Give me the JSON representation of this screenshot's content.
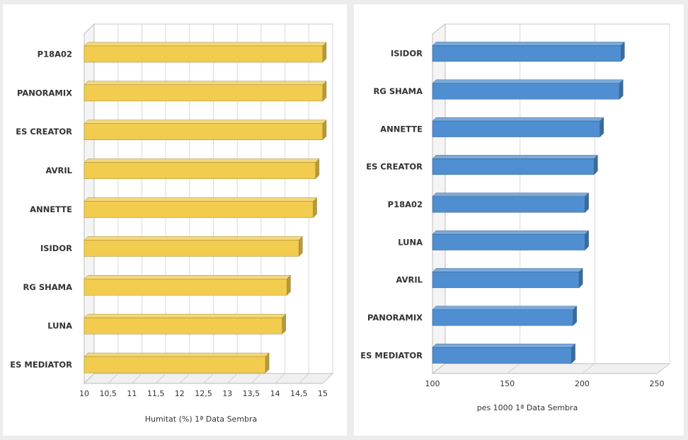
{
  "chart_data": [
    {
      "type": "bar",
      "orientation": "horizontal",
      "style": "3d",
      "categories": [
        "P18A02",
        "PANORAMIX",
        "ES CREATOR",
        "AVRIL",
        "ANNETTE",
        "ISIDOR",
        "RG SHAMA",
        "LUNA",
        "ES MEDIATOR"
      ],
      "values": [
        15.0,
        15.0,
        15.0,
        14.85,
        14.8,
        14.5,
        14.25,
        14.15,
        13.8
      ],
      "xlabel": "Humitat (%) 1ª Data Sembra",
      "xlim": [
        10,
        15
      ],
      "xticks": [
        "10",
        "10,5",
        "11",
        "11,5",
        "12",
        "12,5",
        "13",
        "13,5",
        "14",
        "14,5",
        "15"
      ],
      "grid": true,
      "color": "#F2CC4E"
    },
    {
      "type": "bar",
      "orientation": "horizontal",
      "style": "3d",
      "categories": [
        "ISIDOR",
        "RG SHAMA",
        "ANNETTE",
        "ES CREATOR",
        "P18A02",
        "LUNA",
        "AVRIL",
        "PANORAMIX",
        "ES MEDIATOR"
      ],
      "values": [
        226,
        225,
        212,
        208,
        202,
        202,
        198,
        194,
        193
      ],
      "xlabel": "pes 1000 1ª Data Sembra",
      "xlim": [
        100,
        250
      ],
      "xticks": [
        "100",
        "150",
        "200",
        "250"
      ],
      "grid": true,
      "color": "#4F8FD1"
    }
  ]
}
